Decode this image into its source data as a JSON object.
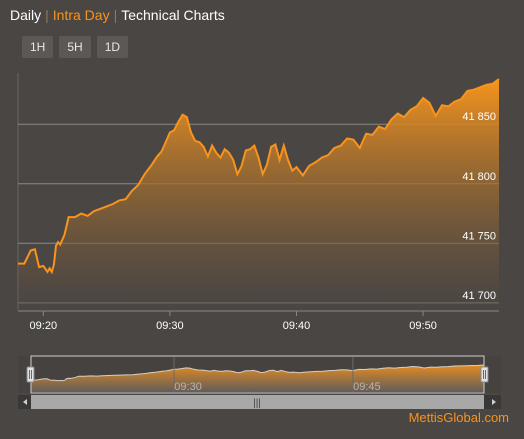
{
  "tabs": [
    {
      "label": "Daily",
      "active": false
    },
    {
      "label": "Intra Day",
      "active": true
    },
    {
      "label": "Technical Charts",
      "active": false
    }
  ],
  "range_buttons": [
    "1H",
    "5H",
    "1D"
  ],
  "brand": "MettisGlobal.com",
  "colors": {
    "background": "#4a4643",
    "accent": "#f7941d",
    "area_top": "#f7941d",
    "area_bottom": "#4a4643"
  },
  "navigator": {
    "x_tick_labels": [
      "09:30",
      "09:45"
    ],
    "scrollbar_grip": "|||"
  },
  "chart_data": {
    "type": "area",
    "title": "",
    "xlabel": "",
    "ylabel": "",
    "x_tick_labels": [
      "09:20",
      "09:30",
      "09:40",
      "09:50"
    ],
    "y_tick_labels": [
      "41 700",
      "41 750",
      "41 800",
      "41 850"
    ],
    "y_ticks": [
      41700,
      41750,
      41800,
      41850
    ],
    "ylim": [
      41694,
      41893
    ],
    "xlim": [
      "09:18",
      "09:56"
    ],
    "grid": true,
    "legend": "none",
    "series": [
      {
        "x": [
          "09:18:00",
          "09:18:30",
          "09:19:00",
          "09:19:20",
          "09:19:40",
          "09:20:00",
          "09:20:20",
          "09:20:30",
          "09:20:40",
          "09:20:50",
          "09:21:00",
          "09:21:10",
          "09:21:20",
          "09:21:40",
          "09:22:00",
          "09:22:30",
          "09:23:00",
          "09:23:30",
          "09:24:00",
          "09:24:30",
          "09:25:00",
          "09:25:30",
          "09:26:00",
          "09:26:30",
          "09:27:00",
          "09:27:30",
          "09:28:00",
          "09:28:30",
          "09:29:00",
          "09:29:20",
          "09:29:40",
          "09:30:00",
          "09:30:20",
          "09:30:40",
          "09:31:00",
          "09:31:20",
          "09:31:40",
          "09:32:00",
          "09:32:20",
          "09:32:40",
          "09:33:00",
          "09:33:20",
          "09:33:40",
          "09:34:00",
          "09:34:20",
          "09:34:40",
          "09:35:00",
          "09:35:20",
          "09:35:40",
          "09:36:00",
          "09:36:20",
          "09:36:40",
          "09:37:00",
          "09:37:20",
          "09:37:40",
          "09:38:00",
          "09:38:20",
          "09:38:40",
          "09:39:00",
          "09:39:20",
          "09:39:40",
          "09:40:00",
          "09:40:30",
          "09:41:00",
          "09:41:30",
          "09:42:00",
          "09:42:30",
          "09:43:00",
          "09:43:30",
          "09:44:00",
          "09:44:30",
          "09:45:00",
          "09:45:30",
          "09:46:00",
          "09:46:30",
          "09:47:00",
          "09:47:30",
          "09:48:00",
          "09:48:30",
          "09:49:00",
          "09:49:30",
          "09:50:00",
          "09:50:30",
          "09:51:00",
          "09:51:30",
          "09:52:00",
          "09:52:30",
          "09:53:00",
          "09:53:30",
          "09:54:00",
          "09:54:30",
          "09:55:00",
          "09:55:30",
          "09:56:00"
        ],
        "y": [
          41733,
          41733,
          41744,
          41745,
          41730,
          41731,
          41726,
          41729,
          41726,
          41732,
          41748,
          41751,
          41749,
          41757,
          41772,
          41772,
          41775,
          41773,
          41777,
          41779,
          41781,
          41783,
          41786,
          41787,
          41794,
          41799,
          41808,
          41815,
          41823,
          41827,
          41835,
          41843,
          41845,
          41852,
          41858,
          41856,
          41843,
          41836,
          41835,
          41831,
          41823,
          41832,
          41826,
          41822,
          41829,
          41826,
          41820,
          41808,
          41815,
          41828,
          41829,
          41832,
          41822,
          41808,
          41816,
          41831,
          41833,
          41820,
          41832,
          41820,
          41811,
          41814,
          41807,
          41815,
          41818,
          41822,
          41824,
          41830,
          41832,
          41838,
          41837,
          41830,
          41842,
          41841,
          41848,
          41846,
          41854,
          41859,
          41856,
          41862,
          41865,
          41872,
          41868,
          41857,
          41866,
          41865,
          41869,
          41871,
          41878,
          41879,
          41881,
          41883,
          41884,
          41888
        ]
      }
    ]
  }
}
